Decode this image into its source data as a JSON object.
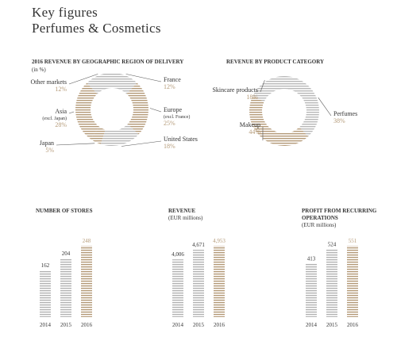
{
  "header": {
    "title": "Key figures",
    "subtitle": "Perfumes & Cosmetics"
  },
  "chart_data": [
    {
      "type": "pie",
      "title": "2016 REVENUE BY GEOGRAPHIC REGION OF DELIVERY",
      "subtitle": "(in %)",
      "categories": [
        "France",
        "Europe",
        "United States",
        "Japan",
        "Asia",
        "Other markets"
      ],
      "category_notes": {
        "1": "(excl. France)",
        "4": "(excl. Japan)"
      },
      "values": [
        12,
        25,
        18,
        5,
        28,
        12
      ],
      "value_labels": [
        "12%",
        "25%",
        "18%",
        "5%",
        "28%",
        "12%"
      ],
      "colors": [
        "#b8b8b8",
        "#b49a78",
        "#b8b8b8",
        "#b49a78",
        "#b49a78",
        "#b8b8b8"
      ],
      "label_color": "#b49a78",
      "donut": true
    },
    {
      "type": "pie",
      "title": "REVENUE BY PRODUCT CATEGORY",
      "categories": [
        "Perfumes",
        "Makeup",
        "Skincare products"
      ],
      "values": [
        38,
        44,
        18
      ],
      "value_labels": [
        "38%",
        "44%",
        "18%"
      ],
      "colors": [
        "#b8b8b8",
        "#b49a78",
        "#b8b8b8"
      ],
      "label_color": "#b49a78",
      "donut": true
    },
    {
      "type": "bar",
      "title": "NUMBER OF STORES",
      "categories": [
        "2014",
        "2015",
        "2016"
      ],
      "values": [
        162,
        204,
        248
      ],
      "colors": [
        "#b3b3b3",
        "#b3b3b3",
        "#b49a78"
      ]
    },
    {
      "type": "bar",
      "title": "REVENUE",
      "subtitle": "(EUR millions)",
      "categories": [
        "2014",
        "2015",
        "2016"
      ],
      "values": [
        4006,
        4671,
        4953
      ],
      "value_labels": [
        "4,006",
        "4,671",
        "4,953"
      ],
      "colors": [
        "#b3b3b3",
        "#b3b3b3",
        "#b49a78"
      ]
    },
    {
      "type": "bar",
      "title": "PROFIT FROM RECURRING OPERATIONS",
      "subtitle": "(EUR millions)",
      "categories": [
        "2014",
        "2015",
        "2016"
      ],
      "values": [
        413,
        524,
        551
      ],
      "colors": [
        "#b3b3b3",
        "#b3b3b3",
        "#b49a78"
      ]
    }
  ]
}
